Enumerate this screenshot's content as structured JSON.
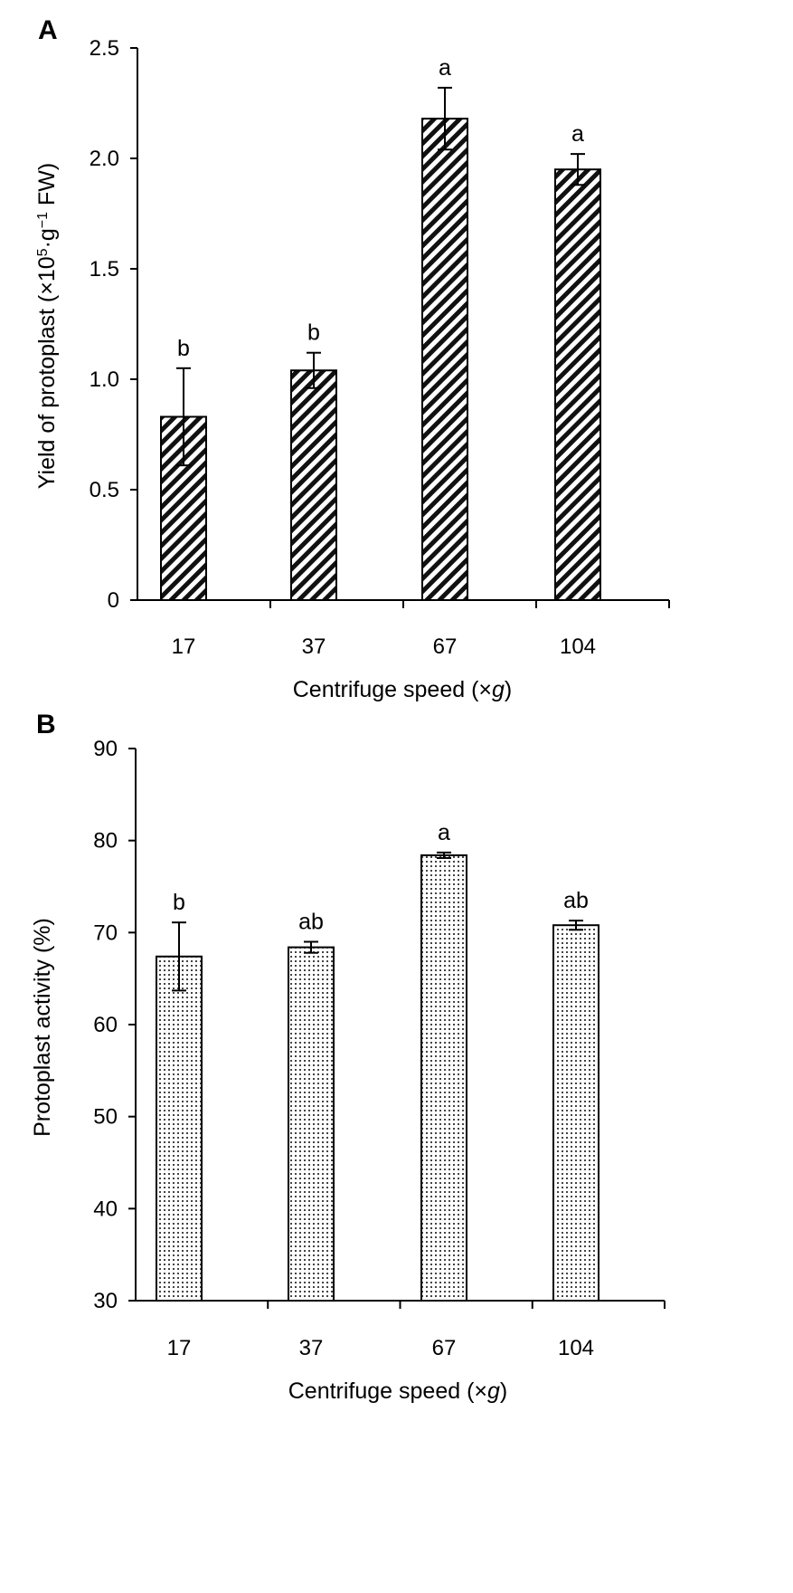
{
  "figure": {
    "panels": [
      {
        "letter": "A",
        "ylabel_main": "Yield of protoplast (×10",
        "ylabel_sup1": "5",
        "ylabel_mid": "·g",
        "ylabel_sup2": "−1",
        "ylabel_end": " FW)",
        "xlabel_main": "Centrifuge speed (×",
        "xlabel_italic": "g",
        "xlabel_end": ")"
      },
      {
        "letter": "B",
        "ylabel": "Protoplast activity (%)",
        "xlabel_main": "Centrifuge speed (×",
        "xlabel_italic": "g",
        "xlabel_end": ")"
      }
    ]
  },
  "chart_data": [
    {
      "type": "bar",
      "panel": "A",
      "categories": [
        "17",
        "37",
        "67",
        "104"
      ],
      "values": [
        0.83,
        1.04,
        2.18,
        1.95
      ],
      "errors": [
        0.22,
        0.08,
        0.14,
        0.07
      ],
      "significance": [
        "b",
        "b",
        "a",
        "a"
      ],
      "ylabel": "Yield of protoplast (×10^5·g^−1 FW)",
      "xlabel": "Centrifuge speed (×g)",
      "ylim": [
        0,
        2.5
      ],
      "yticks": [
        0,
        0.5,
        1.0,
        1.5,
        2.0,
        2.5
      ],
      "ytick_labels": [
        "0",
        "0.5",
        "1.0",
        "1.5",
        "2.0",
        "2.5"
      ],
      "fill_pattern": "diagonal-hatch",
      "grid": false,
      "legend": "none"
    },
    {
      "type": "bar",
      "panel": "B",
      "categories": [
        "17",
        "37",
        "67",
        "104"
      ],
      "values": [
        67.4,
        68.4,
        78.4,
        70.8
      ],
      "errors": [
        3.7,
        0.6,
        0.3,
        0.5
      ],
      "significance": [
        "b",
        "ab",
        "a",
        "ab"
      ],
      "ylabel": "Protoplast activity (%)",
      "xlabel": "Centrifuge speed (×g)",
      "ylim": [
        30,
        90
      ],
      "yticks": [
        30,
        40,
        50,
        60,
        70,
        80,
        90
      ],
      "ytick_labels": [
        "30",
        "40",
        "50",
        "60",
        "70",
        "80",
        "90"
      ],
      "fill_pattern": "dotted",
      "grid": false,
      "legend": "none"
    }
  ]
}
